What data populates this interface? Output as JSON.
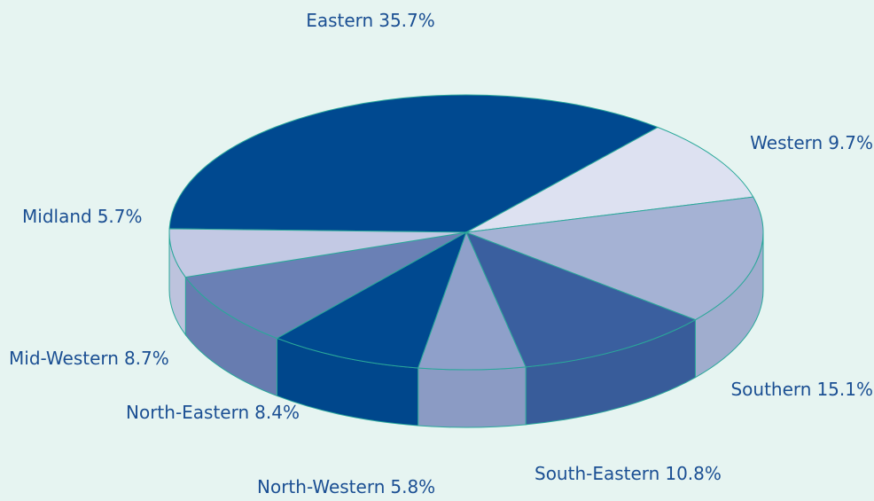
{
  "chart_data": {
    "type": "pie",
    "categories": [
      "Eastern",
      "Western",
      "Southern",
      "South-Eastern",
      "North-Western",
      "North-Eastern",
      "Mid-Western",
      "Midland"
    ],
    "values": [
      35.7,
      9.7,
      15.1,
      10.8,
      5.8,
      8.4,
      8.7,
      5.7
    ],
    "value_labels": [
      "35.7%",
      "9.7%",
      "15.1%",
      "10.8%",
      "5.8%",
      "8.4%",
      "8.7%",
      "5.7%"
    ],
    "colors": [
      "#004990",
      "#dde1f1",
      "#a5b2d4",
      "#3a5f9f",
      "#8fa0ca",
      "#004990",
      "#6a80b5",
      "#c3c9e4"
    ]
  }
}
